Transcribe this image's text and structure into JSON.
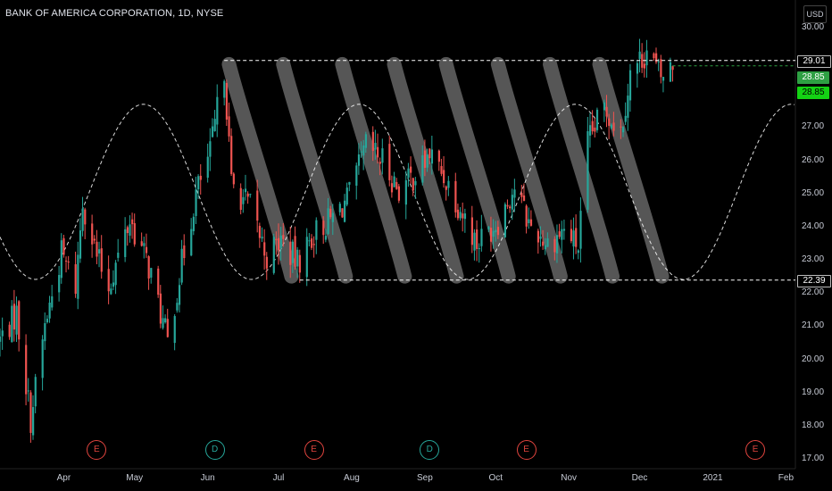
{
  "header": {
    "title": "BANK OF AMERICA CORPORATION, 1D, NYSE",
    "currency": "USD"
  },
  "colors": {
    "up": "#26a69a",
    "down": "#ef5350",
    "background": "#000000",
    "wave": "#ffffff",
    "stripe": "#7a7a7a"
  },
  "price_boxes": {
    "resistance": "29.01",
    "last": "28.85",
    "current": "28.85",
    "support": "22.39"
  },
  "events": [
    {
      "label": "E",
      "kind": "earnings",
      "date": "2020-04-15"
    },
    {
      "label": "D",
      "kind": "dividend",
      "date": "2020-06-04"
    },
    {
      "label": "E",
      "kind": "earnings",
      "date": "2020-07-16"
    },
    {
      "label": "D",
      "kind": "dividend",
      "date": "2020-09-03"
    },
    {
      "label": "E",
      "kind": "earnings",
      "date": "2020-10-14"
    },
    {
      "label": "E",
      "kind": "earnings",
      "date": "2021-01-19"
    }
  ],
  "chart_data": {
    "type": "candlestick",
    "title": "BANK OF AMERICA CORPORATION, 1D, NYSE",
    "y_axis": {
      "currency": "USD",
      "ylim": [
        17.0,
        30.0
      ],
      "ticks": [
        "30.00",
        "29.00",
        "28.00",
        "27.00",
        "26.00",
        "25.00",
        "24.00",
        "23.00",
        "22.00",
        "21.00",
        "20.00",
        "19.00",
        "18.00",
        "17.00"
      ]
    },
    "x_axis": {
      "ticks": [
        "Apr",
        "May",
        "Jun",
        "Jul",
        "Aug",
        "Sep",
        "Oct",
        "Nov",
        "Dec",
        "2021",
        "Feb"
      ],
      "tick_dates": [
        "2020-04-01",
        "2020-05-01",
        "2020-06-01",
        "2020-07-01",
        "2020-08-01",
        "2020-09-01",
        "2020-10-01",
        "2020-11-01",
        "2020-12-01",
        "2021-01-01",
        "2021-02-01"
      ],
      "xlim": [
        "2020-03-05",
        "2021-02-05"
      ]
    },
    "approx_close_path": [
      {
        "date": "2020-03-05",
        "close": 20.6
      },
      {
        "date": "2020-03-12",
        "close": 21.4
      },
      {
        "date": "2020-03-18",
        "close": 18.2
      },
      {
        "date": "2020-03-24",
        "close": 21.0
      },
      {
        "date": "2020-03-31",
        "close": 23.2
      },
      {
        "date": "2020-04-06",
        "close": 22.2
      },
      {
        "date": "2020-04-09",
        "close": 24.8
      },
      {
        "date": "2020-04-15",
        "close": 23.1
      },
      {
        "date": "2020-04-20",
        "close": 22.2
      },
      {
        "date": "2020-04-29",
        "close": 24.2
      },
      {
        "date": "2020-05-07",
        "close": 22.8
      },
      {
        "date": "2020-05-13",
        "close": 21.1
      },
      {
        "date": "2020-05-15",
        "close": 20.5
      },
      {
        "date": "2020-05-21",
        "close": 22.9
      },
      {
        "date": "2020-05-27",
        "close": 25.0
      },
      {
        "date": "2020-06-02",
        "close": 26.2
      },
      {
        "date": "2020-06-08",
        "close": 28.8
      },
      {
        "date": "2020-06-11",
        "close": 25.3
      },
      {
        "date": "2020-06-19",
        "close": 24.6
      },
      {
        "date": "2020-06-26",
        "close": 23.1
      },
      {
        "date": "2020-07-02",
        "close": 23.6
      },
      {
        "date": "2020-07-09",
        "close": 22.9
      },
      {
        "date": "2020-07-16",
        "close": 23.8
      },
      {
        "date": "2020-07-23",
        "close": 24.2
      },
      {
        "date": "2020-07-31",
        "close": 24.9
      },
      {
        "date": "2020-08-07",
        "close": 26.4
      },
      {
        "date": "2020-08-14",
        "close": 26.0
      },
      {
        "date": "2020-08-21",
        "close": 25.1
      },
      {
        "date": "2020-08-31",
        "close": 25.8
      },
      {
        "date": "2020-09-03",
        "close": 26.2
      },
      {
        "date": "2020-09-11",
        "close": 25.3
      },
      {
        "date": "2020-09-23",
        "close": 23.5
      },
      {
        "date": "2020-10-02",
        "close": 24.2
      },
      {
        "date": "2020-10-09",
        "close": 25.2
      },
      {
        "date": "2020-10-15",
        "close": 24.1
      },
      {
        "date": "2020-10-23",
        "close": 23.5
      },
      {
        "date": "2020-10-30",
        "close": 23.9
      },
      {
        "date": "2020-11-05",
        "close": 23.4
      },
      {
        "date": "2020-11-09",
        "close": 26.5
      },
      {
        "date": "2020-11-16",
        "close": 27.6
      },
      {
        "date": "2020-11-23",
        "close": 26.9
      },
      {
        "date": "2020-11-27",
        "close": 28.6
      },
      {
        "date": "2020-12-04",
        "close": 29.3
      },
      {
        "date": "2020-12-10",
        "close": 28.5
      },
      {
        "date": "2020-12-15",
        "close": 28.85
      }
    ],
    "levels": [
      {
        "label": "29.01",
        "value": 29.01
      },
      {
        "label": "22.39",
        "value": 22.39
      }
    ],
    "last_price": 28.85
  }
}
